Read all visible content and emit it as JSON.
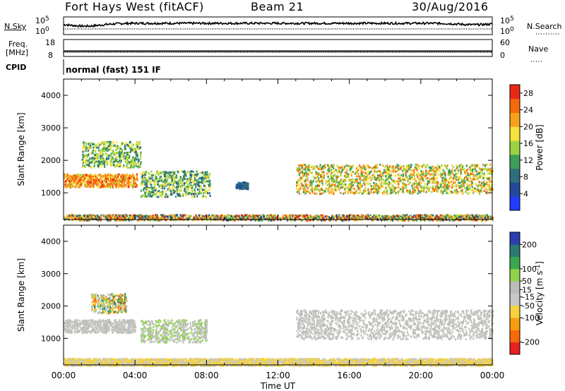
{
  "header": {
    "title": "Fort Hays West (fitACF)",
    "beam": "Beam 21",
    "date": "30/Aug/2016"
  },
  "strip_nsky": {
    "left_label": "N.Sky",
    "right_label": "N.Search",
    "left_ticks": [
      "10^5",
      "10^0"
    ],
    "right_ticks": [
      "10^5",
      "10^0"
    ]
  },
  "strip_freq": {
    "left_label_top": "Freq.",
    "left_label_unit": "[MHz]",
    "right_label": "Nave",
    "left_ticks": [
      "18",
      "8"
    ],
    "right_ticks": [
      "60",
      "0"
    ]
  },
  "strip_cpid": {
    "left_label": "CPID",
    "text": "normal (fast) 151 IF"
  },
  "colors": {
    "power_scale": [
      "#1f3cff",
      "#22499d",
      "#2f6f7b",
      "#3c9e59",
      "#9bd23f",
      "#f5e23a",
      "#f7a01c",
      "#f46a0d",
      "#e92918"
    ],
    "velocity_scale": [
      "#e82020",
      "#f56a0a",
      "#f59e0b",
      "#f6d23c",
      "#c8c8c4",
      "#bcbcb8",
      "#8fd44a",
      "#3aa850",
      "#2a7a70",
      "#2a40b0"
    ]
  },
  "chart_data": [
    {
      "type": "heatmap",
      "panel": "power",
      "title": "",
      "xlabel": "Time UT",
      "ylabel": "Slant Range [km]",
      "xlim": [
        "00:00",
        "24:00"
      ],
      "ylim": [
        180,
        4500
      ],
      "x_ticks": [
        "00:00",
        "04:00",
        "08:00",
        "12:00",
        "16:00",
        "20:00",
        "00:00"
      ],
      "y_ticks": [
        1000,
        2000,
        3000,
        4000
      ],
      "colorbar": {
        "label": "Power [dB]",
        "ticks": [
          4,
          8,
          12,
          16,
          20,
          24,
          28
        ],
        "range": [
          0,
          30
        ]
      },
      "backscatter_regions": [
        {
          "from_ut": 0.0,
          "to_ut": 4.1,
          "range_km": [
            1200,
            1600
          ],
          "value_db": [
            16,
            28
          ]
        },
        {
          "from_ut": 1.0,
          "to_ut": 4.3,
          "range_km": [
            1800,
            2600
          ],
          "value_db": [
            8,
            20
          ]
        },
        {
          "from_ut": 4.3,
          "to_ut": 8.2,
          "range_km": [
            900,
            1700
          ],
          "value_db": [
            6,
            20
          ]
        },
        {
          "from_ut": 9.6,
          "to_ut": 10.3,
          "range_km": [
            1150,
            1350
          ],
          "value_db": [
            4,
            10
          ]
        },
        {
          "from_ut": 13.0,
          "to_ut": 24.0,
          "range_km": [
            1000,
            1900
          ],
          "value_db": [
            10,
            26
          ]
        },
        {
          "from_ut": 0.0,
          "to_ut": 24.0,
          "range_km": [
            180,
            350
          ],
          "value_db": [
            4,
            30
          ]
        }
      ]
    },
    {
      "type": "heatmap",
      "panel": "velocity",
      "title": "",
      "xlabel": "Time UT",
      "ylabel": "Slant Range [km]",
      "xlim": [
        "00:00",
        "24:00"
      ],
      "ylim": [
        180,
        4500
      ],
      "x_ticks": [
        "00:00",
        "04:00",
        "08:00",
        "12:00",
        "16:00",
        "20:00",
        "00:00"
      ],
      "y_ticks": [
        1000,
        2000,
        3000,
        4000
      ],
      "colorbar": {
        "label": "Velocity [m s^-1]",
        "ticks": [
          200,
          100,
          50,
          15,
          -15,
          -50,
          -100,
          -200
        ],
        "range": [
          -250,
          250
        ]
      },
      "backscatter_regions": [
        {
          "from_ut": 0.0,
          "to_ut": 4.0,
          "range_km": [
            1200,
            1600
          ],
          "value_ms": [
            -15,
            15
          ]
        },
        {
          "from_ut": 1.5,
          "to_ut": 3.5,
          "range_km": [
            1800,
            2400
          ],
          "value_ms": [
            -200,
            200
          ]
        },
        {
          "from_ut": 4.3,
          "to_ut": 8.0,
          "range_km": [
            900,
            1600
          ],
          "value_ms": [
            -50,
            100
          ]
        },
        {
          "from_ut": 13.0,
          "to_ut": 24.0,
          "range_km": [
            1000,
            1900
          ],
          "value_ms": [
            -15,
            15
          ]
        },
        {
          "from_ut": 0.0,
          "to_ut": 24.0,
          "range_km": [
            180,
            400
          ],
          "value_ms": [
            -100,
            -15
          ]
        }
      ]
    }
  ]
}
